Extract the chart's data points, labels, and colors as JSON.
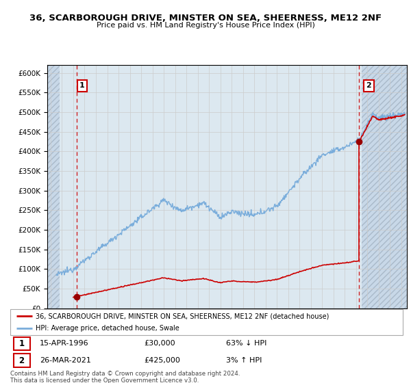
{
  "title": "36, SCARBOROUGH DRIVE, MINSTER ON SEA, SHEERNESS, ME12 2NF",
  "subtitle": "Price paid vs. HM Land Registry's House Price Index (HPI)",
  "ylim": [
    0,
    620000
  ],
  "xlim_start": 1993.7,
  "xlim_end": 2025.5,
  "sale1_x": 1996.29,
  "sale1_y": 30000,
  "sale1_label": "1",
  "sale2_x": 2021.23,
  "sale2_y": 425000,
  "sale2_label": "2",
  "sale1_date": "15-APR-1996",
  "sale1_price": "£30,000",
  "sale1_hpi": "63% ↓ HPI",
  "sale2_date": "26-MAR-2021",
  "sale2_price": "£425,000",
  "sale2_hpi": "3% ↑ HPI",
  "legend_property": "36, SCARBOROUGH DRIVE, MINSTER ON SEA, SHEERNESS, ME12 2NF (detached house)",
  "legend_hpi": "HPI: Average price, detached house, Swale",
  "footer": "Contains HM Land Registry data © Crown copyright and database right 2024.\nThis data is licensed under the Open Government Licence v3.0.",
  "property_line_color": "#cc0000",
  "hpi_line_color": "#7aaddb",
  "sale_dot_color": "#990000",
  "annotation_box_color": "#cc0000",
  "grid_color": "#cccccc",
  "vline_color": "#cc0000",
  "bg_main": "#dce8f0",
  "bg_hatch": "#c8d8e4"
}
